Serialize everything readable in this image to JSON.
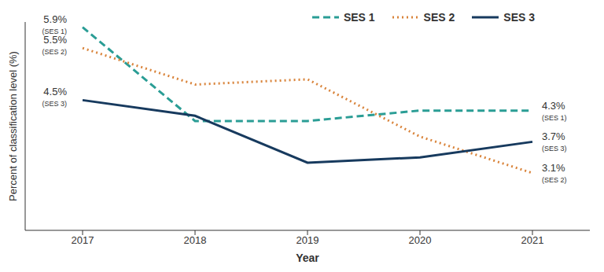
{
  "chart_data": {
    "type": "line",
    "x_label": "Year",
    "y_label": "Percent of classification level (%)",
    "categories": [
      "2017",
      "2018",
      "2019",
      "2020",
      "2021"
    ],
    "series": [
      {
        "name": "SES 1",
        "color": "#2a9d95",
        "line_style": "dashed",
        "values": [
          5.9,
          4.1,
          4.1,
          4.3,
          4.3
        ]
      },
      {
        "name": "SES 2",
        "color": "#d9843b",
        "line_style": "dotted",
        "values": [
          5.5,
          4.8,
          4.9,
          3.8,
          3.1
        ]
      },
      {
        "name": "SES 3",
        "color": "#173a5e",
        "line_style": "solid",
        "values": [
          4.5,
          4.2,
          3.3,
          3.4,
          3.7
        ]
      }
    ],
    "ylim": [
      2,
      6
    ],
    "tick_labels": "x",
    "legend": "top-right",
    "grid": false,
    "annotations": [
      {
        "series": "SES 1",
        "x": "2017",
        "text": "5.9%",
        "subtext": "(SES 1)"
      },
      {
        "series": "SES 2",
        "x": "2017",
        "text": "5.5%",
        "subtext": "(SES 2)"
      },
      {
        "series": "SES 3",
        "x": "2017",
        "text": "4.5%",
        "subtext": "(SES 3)"
      },
      {
        "series": "SES 1",
        "x": "2021",
        "text": "4.3%",
        "subtext": "(SES 1)"
      },
      {
        "series": "SES 3",
        "x": "2021",
        "text": "3.7%",
        "subtext": "(SES 3)"
      },
      {
        "series": "SES 2",
        "x": "2021",
        "text": "3.1%",
        "subtext": "(SES 2)"
      }
    ]
  }
}
